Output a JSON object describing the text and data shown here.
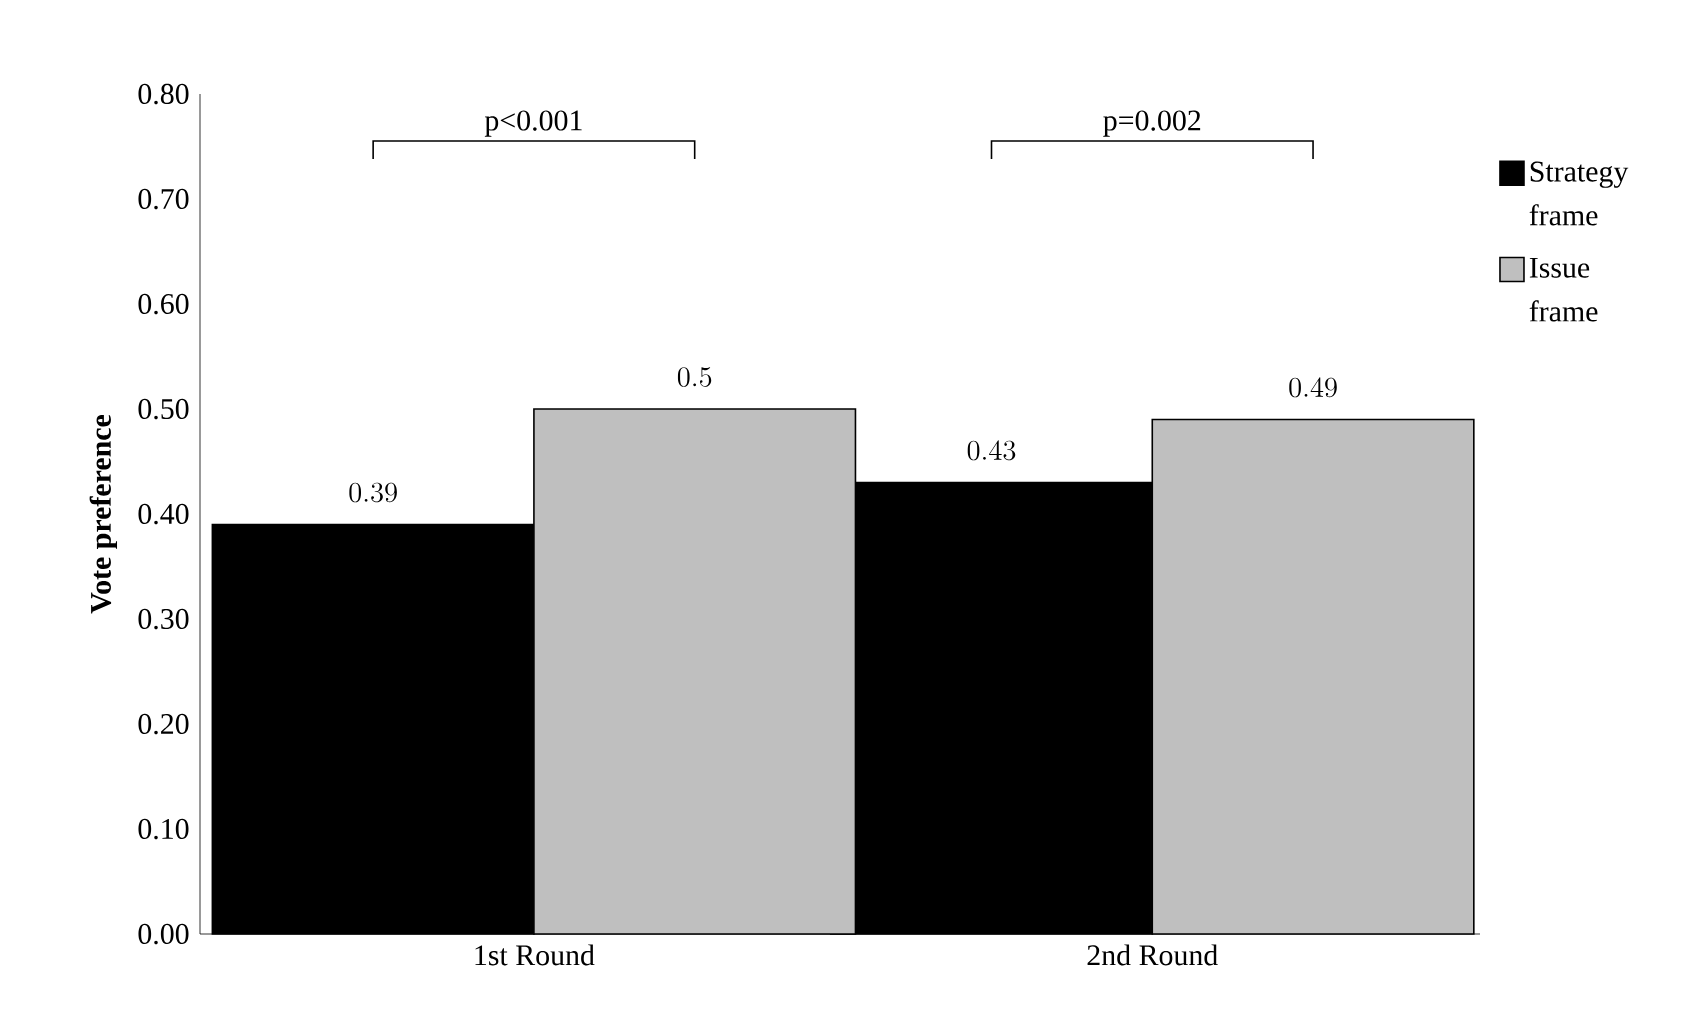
{
  "chart_data": {
    "type": "bar",
    "ylabel": "Vote preference",
    "categories": [
      "1st Round",
      "2nd Round"
    ],
    "series": [
      {
        "name": "Strategy frame",
        "color": "#000000",
        "values": [
          0.39,
          0.43
        ]
      },
      {
        "name": "Issue frame",
        "color": "#bfbfbf",
        "values": [
          0.5,
          0.49
        ]
      }
    ],
    "ylim": [
      0,
      0.8
    ],
    "yticks": [
      {
        "value": 0,
        "label": "0.00"
      },
      {
        "value": 0.1,
        "label": "0.10"
      },
      {
        "value": 0.2,
        "label": "0.20"
      },
      {
        "value": 0.3,
        "label": "0.30"
      },
      {
        "value": 0.4,
        "label": "0.40"
      },
      {
        "value": 0.5,
        "label": "0.50"
      },
      {
        "value": 0.6,
        "label": "0.60"
      },
      {
        "value": 0.7,
        "label": "0.70"
      },
      {
        "value": 0.8,
        "label": "0.80"
      }
    ],
    "annotations": [
      "p<0.001",
      "p=0.002"
    ],
    "data_labels": true,
    "grid": false,
    "legend": "right"
  }
}
